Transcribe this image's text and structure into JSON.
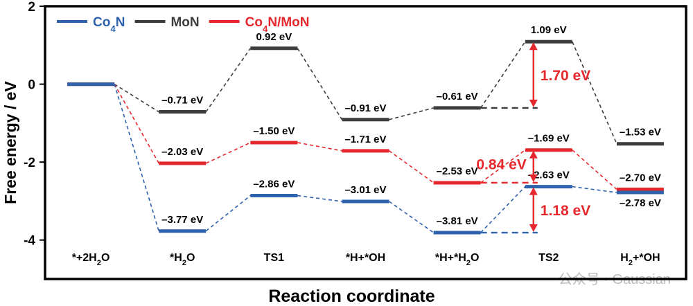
{
  "chart_data": {
    "type": "line",
    "ylabel": "Free energy / eV",
    "xlabel": "Reaction coordinate",
    "ylim": [
      -5,
      2
    ],
    "yticks": [
      "2",
      "0",
      "-2",
      "-4"
    ],
    "ytick_values": [
      2,
      0,
      -2,
      -4
    ],
    "categories": [
      {
        "pre": "*+2H",
        "sub": "2",
        "post": "O"
      },
      {
        "pre": "*H",
        "sub": "2",
        "post": "O"
      },
      {
        "pre": "TS1",
        "sub": "",
        "post": ""
      },
      {
        "pre": "*H+*OH",
        "sub": "",
        "post": ""
      },
      {
        "pre": "*H+*H",
        "sub": "2",
        "post": "O"
      },
      {
        "pre": "TS2",
        "sub": "",
        "post": ""
      },
      {
        "pre": "H",
        "sub": "2",
        "post": "+*OH"
      }
    ],
    "legend": {
      "placement": "top-left",
      "entries": [
        {
          "pre": "Co",
          "sub": "4",
          "post": "N",
          "color": "#2f62ad"
        },
        {
          "pre": "MoN",
          "sub": "",
          "post": "",
          "color": "#3d3d3d"
        },
        {
          "pre": "Co",
          "sub": "4",
          "post": "N/MoN",
          "color": "#e5282d"
        }
      ]
    },
    "series": [
      {
        "color": "#3d3d3d",
        "values": [
          0,
          -0.71,
          0.92,
          -0.91,
          -0.61,
          1.09,
          -1.53
        ],
        "labels": [
          "",
          "–0.71 eV",
          "0.92 eV",
          "–0.91 eV",
          "–0.61 eV",
          "1.09 eV",
          "–1.53 eV"
        ]
      },
      {
        "color": "#e5282d",
        "values": [
          0,
          -2.03,
          -1.5,
          -1.71,
          -2.53,
          -1.69,
          -2.7
        ],
        "labels": [
          "",
          "–2.03 eV",
          "–1.50 eV",
          "–1.71 eV",
          "–2.53 eV",
          "–1.69 eV",
          "–2.70 eV"
        ]
      },
      {
        "color": "#2f62ad",
        "values": [
          0,
          -3.77,
          -2.86,
          -3.01,
          -3.81,
          -2.63,
          -2.78
        ],
        "labels": [
          "",
          "–3.77 eV",
          "–2.86 eV",
          "–3.01 eV",
          "–3.81 eV",
          "–2.63 eV",
          "–2.78 eV"
        ]
      }
    ],
    "annotations": [
      {
        "text": "1.70 eV",
        "from": -0.61,
        "to": 1.09,
        "color": "#e5282d"
      },
      {
        "text": "0.84 eV",
        "from": -2.53,
        "to": -1.69,
        "color": "#e5282d"
      },
      {
        "text": "1.18 eV",
        "from": -3.81,
        "to": -2.63,
        "color": "#e5282d"
      }
    ],
    "watermark": "公众号 · Gaussian"
  }
}
